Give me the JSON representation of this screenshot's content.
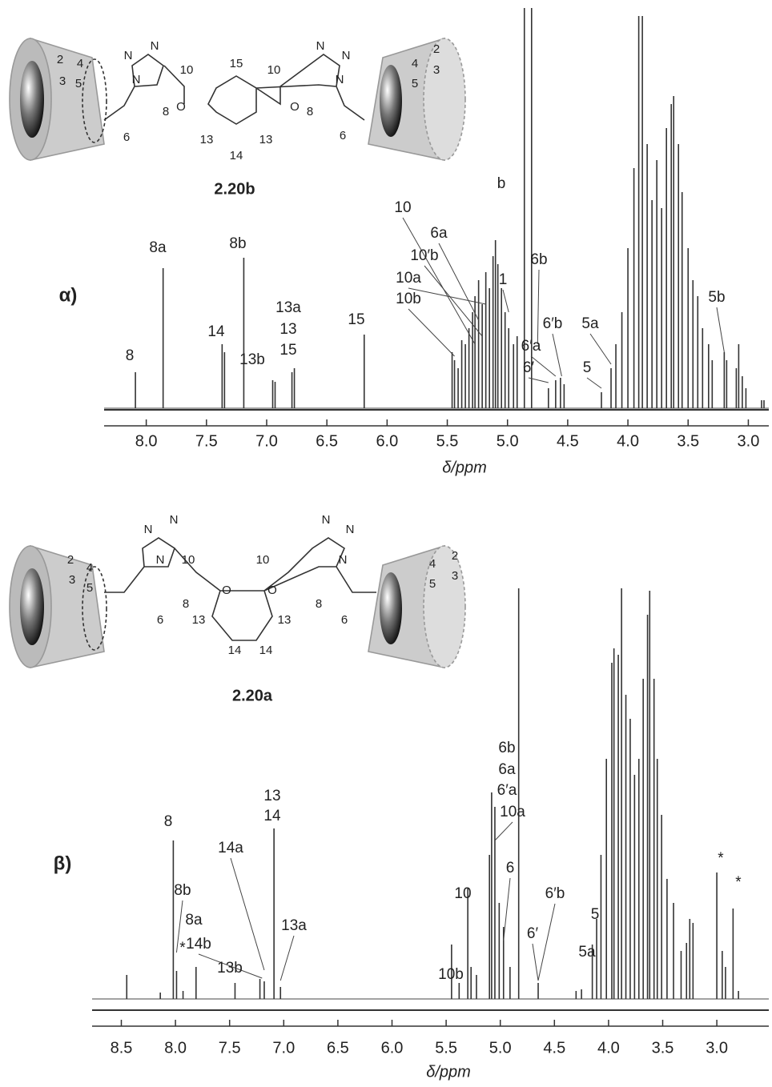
{
  "chart_data": [
    {
      "type": "spectrum",
      "label": "α)",
      "structure": {
        "name": "2.20b",
        "labels": [
          "2",
          "3",
          "4",
          "5",
          "6",
          "N",
          "N",
          "N",
          "8",
          "10",
          "O",
          "15",
          "13",
          "14",
          "13",
          "O",
          "10",
          "N",
          "N",
          "N",
          "8",
          "6",
          "4",
          "5",
          "2",
          "3"
        ]
      },
      "xlabel": "δ/ppm",
      "xlim": [
        8.35,
        2.83
      ],
      "xticks": [
        {
          "value": 8,
          "label": "8.0"
        },
        7.5,
        {
          "value": 7,
          "label": "7.0"
        },
        6.5,
        {
          "value": 6,
          "label": "6.0"
        },
        5.5,
        {
          "value": 5,
          "label": "5.0"
        },
        4.5,
        {
          "value": 4,
          "label": "4.0"
        },
        3.5,
        {
          "value": 3,
          "label": "3.0"
        }
      ],
      "x": [
        8.09,
        7.86,
        7.37,
        7.35,
        7.19,
        6.95,
        6.93,
        6.79,
        6.77,
        6.19,
        5.46,
        5.44,
        5.41,
        5.38,
        5.35,
        5.32,
        5.29,
        5.27,
        5.24,
        5.21,
        5.18,
        5.15,
        5.12,
        5.1,
        5.08,
        5.05,
        5.02,
        4.99,
        4.95,
        4.92,
        4.86,
        4.8,
        4.66,
        4.6,
        4.56,
        4.53,
        4.22,
        4.14,
        4.1,
        4.05,
        4.0,
        3.95,
        3.91,
        3.88,
        3.84,
        3.8,
        3.76,
        3.72,
        3.68,
        3.64,
        3.62,
        3.58,
        3.55,
        3.5,
        3.46,
        3.42,
        3.38,
        3.33,
        3.3,
        3.2,
        3.18,
        3.1,
        3.08,
        3.05,
        3.02,
        2.89,
        2.87
      ],
      "values": [
        45,
        175,
        80,
        70,
        188,
        35,
        33,
        45,
        50,
        92,
        70,
        60,
        50,
        85,
        80,
        100,
        120,
        140,
        160,
        130,
        170,
        150,
        190,
        210,
        180,
        150,
        120,
        100,
        80,
        90,
        500,
        500,
        25,
        35,
        38,
        30,
        20,
        50,
        80,
        120,
        200,
        300,
        490,
        490,
        330,
        260,
        310,
        250,
        350,
        380,
        390,
        330,
        270,
        200,
        160,
        140,
        100,
        80,
        60,
        70,
        60,
        50,
        80,
        40,
        25,
        10,
        10
      ],
      "annotations": [
        {
          "text": "8",
          "x": 8.09
        },
        {
          "text": "8a",
          "x": 7.86
        },
        {
          "text": "14",
          "x": 7.37
        },
        {
          "text": "8b",
          "x": 7.19
        },
        {
          "text": "13b",
          "x": 6.94
        },
        {
          "text": "13a",
          "x": 6.78
        },
        {
          "text": "13",
          "x": 6.78
        },
        {
          "text": "15",
          "x": 6.78
        },
        {
          "text": "15",
          "x": 6.19
        },
        {
          "text": "10",
          "x": 5.27
        },
        {
          "text": "6a",
          "x": 5.24
        },
        {
          "text": "10′b",
          "x": 5.21
        },
        {
          "text": "10a",
          "x": 5.18
        },
        {
          "text": "10b",
          "x": 5.44
        },
        {
          "text": "b",
          "x": 5.0
        },
        {
          "text": "1",
          "x": 4.99
        },
        {
          "text": "6b",
          "x": 4.75
        },
        {
          "text": "6′b",
          "x": 4.55
        },
        {
          "text": "6′a",
          "x": 4.6
        },
        {
          "text": "6′",
          "x": 4.66
        },
        {
          "text": "5a",
          "x": 4.14
        },
        {
          "text": "5",
          "x": 4.22
        },
        {
          "text": "5b",
          "x": 3.2
        }
      ]
    },
    {
      "type": "spectrum",
      "label": "β)",
      "structure": {
        "name": "2.20a",
        "labels": [
          "2",
          "3",
          "4",
          "5",
          "6",
          "N",
          "N",
          "N",
          "8",
          "10",
          "O",
          "13",
          "14",
          "14",
          "13",
          "O",
          "10",
          "N",
          "N",
          "N",
          "8",
          "6",
          "4",
          "5",
          "2",
          "3"
        ]
      },
      "xlabel": "δ/ppm",
      "xlim": [
        8.77,
        2.52
      ],
      "xticks": [
        8.5,
        {
          "value": 8,
          "label": "8.0"
        },
        7.5,
        {
          "value": 7,
          "label": "7.0"
        },
        6.5,
        {
          "value": 6,
          "label": "6.0"
        },
        5.5,
        {
          "value": 5,
          "label": "5.0"
        },
        4.5,
        {
          "value": 4,
          "label": "4.0"
        },
        3.5,
        {
          "value": 3,
          "label": "3.0"
        }
      ],
      "x": [
        8.45,
        8.14,
        8.02,
        7.99,
        7.93,
        7.81,
        7.45,
        7.22,
        7.18,
        7.09,
        7.03,
        5.45,
        5.38,
        5.3,
        5.27,
        5.22,
        5.1,
        5.08,
        5.05,
        5.01,
        4.97,
        4.91,
        4.83,
        4.65,
        4.3,
        4.25,
        4.15,
        4.11,
        4.07,
        4.02,
        3.97,
        3.95,
        3.91,
        3.88,
        3.84,
        3.8,
        3.76,
        3.72,
        3.68,
        3.64,
        3.62,
        3.58,
        3.55,
        3.51,
        3.46,
        3.4,
        3.33,
        3.28,
        3.25,
        3.22,
        3.0,
        2.95,
        2.92,
        2.85,
        2.8
      ],
      "values": [
        30,
        8,
        198,
        35,
        10,
        40,
        20,
        25,
        22,
        213,
        15,
        68,
        20,
        138,
        40,
        30,
        180,
        258,
        240,
        120,
        90,
        40,
        513,
        20,
        10,
        12,
        68,
        100,
        180,
        300,
        420,
        438,
        430,
        513,
        380,
        350,
        280,
        300,
        400,
        480,
        510,
        400,
        300,
        230,
        150,
        120,
        60,
        70,
        100,
        95,
        158,
        60,
        40,
        113,
        10
      ],
      "annotations": [
        {
          "text": "8",
          "x": 8.02
        },
        {
          "text": "8b",
          "x": 7.99
        },
        {
          "text": "*",
          "x": 7.93
        },
        {
          "text": "8a",
          "x": 7.81
        },
        {
          "text": "14b",
          "x": 7.2
        },
        {
          "text": "13b",
          "x": 7.45
        },
        {
          "text": "14a",
          "x": 7.18
        },
        {
          "text": "13",
          "x": 7.09
        },
        {
          "text": "14",
          "x": 7.09
        },
        {
          "text": "13a",
          "x": 7.03
        },
        {
          "text": "10b",
          "x": 5.45
        },
        {
          "text": "10",
          "x": 5.3
        },
        {
          "text": "6b",
          "x": 5.08
        },
        {
          "text": "6a",
          "x": 5.08
        },
        {
          "text": "6′a",
          "x": 5.05
        },
        {
          "text": "10a",
          "x": 5.05
        },
        {
          "text": "6",
          "x": 4.97
        },
        {
          "text": "6′",
          "x": 4.65
        },
        {
          "text": "6′b",
          "x": 4.65
        },
        {
          "text": "5a",
          "x": 4.3
        },
        {
          "text": "5",
          "x": 4.15
        },
        {
          "text": "*",
          "x": 3.0
        },
        {
          "text": "*",
          "x": 2.85
        }
      ]
    }
  ]
}
